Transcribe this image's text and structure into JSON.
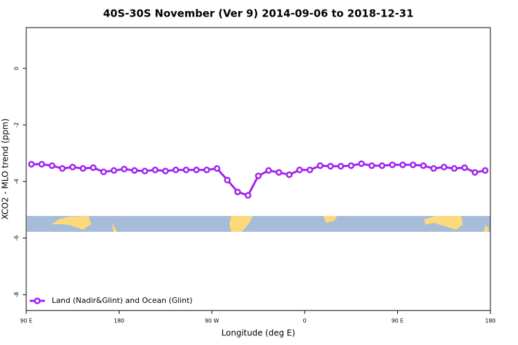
{
  "chart_data": {
    "type": "line",
    "title": "40S-30S November (Ver 9)   2014-09-06 to 2018-12-31",
    "x_label": "Longitude (deg E)",
    "y_label": "XCO2 - MLO trend (ppm)",
    "x": [
      95,
      105,
      115,
      125,
      135,
      145,
      155,
      165,
      175,
      185,
      195,
      205,
      215,
      225,
      235,
      245,
      255,
      265,
      275,
      285,
      295,
      305,
      315,
      325,
      335,
      345,
      355,
      365,
      375,
      385,
      395,
      405,
      415,
      425,
      435,
      445,
      455,
      465,
      475,
      485,
      495,
      505,
      515,
      525,
      535
    ],
    "series": [
      {
        "name": "Land (Nadir&Glint) and Ocean (Glint)",
        "color": "#a020f0",
        "values": [
          -3.39,
          -3.39,
          -3.44,
          -3.54,
          -3.49,
          -3.54,
          -3.51,
          -3.66,
          -3.61,
          -3.56,
          -3.61,
          -3.63,
          -3.59,
          -3.63,
          -3.59,
          -3.59,
          -3.59,
          -3.59,
          -3.54,
          -3.95,
          -4.37,
          -4.49,
          -3.8,
          -3.61,
          -3.68,
          -3.76,
          -3.59,
          -3.59,
          -3.44,
          -3.46,
          -3.46,
          -3.44,
          -3.37,
          -3.44,
          -3.44,
          -3.41,
          -3.41,
          -3.41,
          -3.44,
          -3.54,
          -3.49,
          -3.54,
          -3.51,
          -3.68,
          -3.61
        ]
      }
    ],
    "xlim": [
      90,
      540
    ],
    "xticks": [
      {
        "value": 90,
        "label": "90 E"
      },
      180,
      {
        "value": 270,
        "label": "90 W"
      },
      {
        "value": 360,
        "label": "0"
      },
      {
        "value": 450,
        "label": "90 E"
      },
      {
        "value": 540,
        "label": "180"
      }
    ],
    "ylim": [
      -8.56,
      1.44
    ],
    "yticks": [
      0,
      -2,
      -4,
      -6,
      -8
    ],
    "legend": "bottom-left"
  }
}
